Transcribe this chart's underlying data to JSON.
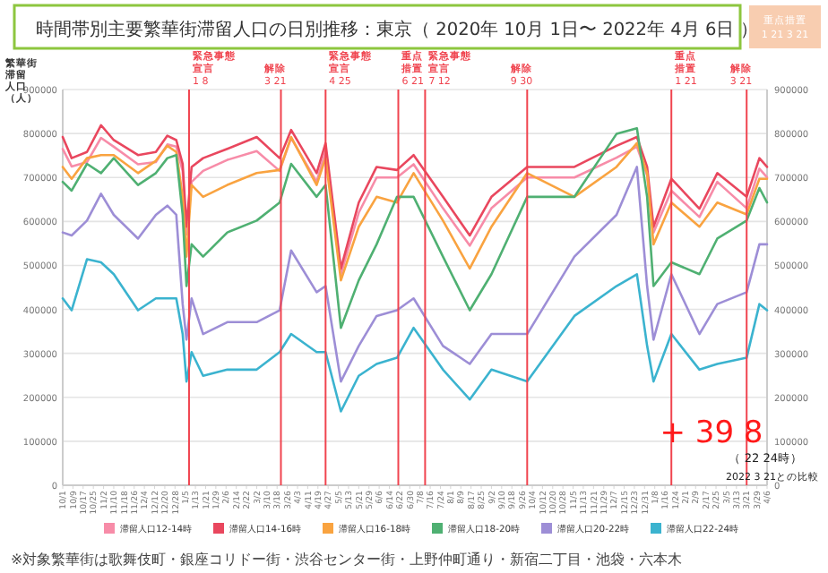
{
  "chart_data": {
    "type": "line",
    "title": "時間帯別主要繁華街滞留人口の日別推移：東京（ 2020年 10月 1日〜 2022年 4月 6日 ）",
    "ylabel": "繁華街滞留人口（人）",
    "x": [
      "2020-10-01",
      "2020-10-08",
      "2020-10-20",
      "2020-10-31",
      "2020-11-10",
      "2020-11-29",
      "2020-12-13",
      "2020-12-22",
      "2020-12-29",
      "2021-01-03",
      "2021-01-06",
      "2021-01-10",
      "2021-01-19",
      "2021-02-07",
      "2021-03-02",
      "2021-03-20",
      "2021-03-29",
      "2021-04-18",
      "2021-04-25",
      "2021-05-07",
      "2021-05-21",
      "2021-06-04",
      "2021-06-20",
      "2021-07-03",
      "2021-07-26",
      "2021-08-16",
      "2021-09-02",
      "2021-09-30",
      "2021-11-06",
      "2021-12-09",
      "2021-12-25",
      "2022-01-02",
      "2022-01-07",
      "2022-01-21",
      "2022-02-12",
      "2022-02-26",
      "2022-03-21",
      "2022-03-31",
      "2022-04-06"
    ],
    "xlim": [
      "2020-10-01",
      "2022-04-06"
    ],
    "ylim": [
      0,
      900000
    ],
    "yticks": [
      0,
      100000,
      200000,
      300000,
      400000,
      500000,
      600000,
      700000,
      800000,
      900000
    ],
    "y2lim": [
      0,
      900000
    ],
    "y2ticks": [
      0,
      100000,
      200000,
      300000,
      400000,
      500000,
      600000,
      700000,
      800000,
      900000
    ],
    "grid": "y",
    "legend": "bottom",
    "series": [
      {
        "name": "滞留人口12-14時",
        "color": "#f78ca8",
        "values": [
          765000,
          725000,
          735000,
          790000,
          770000,
          730000,
          735000,
          775000,
          770000,
          715000,
          570000,
          690000,
          715000,
          740000,
          760000,
          715000,
          790000,
          690000,
          760000,
          480000,
          620000,
          700000,
          700000,
          730000,
          630000,
          545000,
          630000,
          700000,
          700000,
          745000,
          770000,
          705000,
          575000,
          670000,
          610000,
          690000,
          630000,
          720000,
          700000
        ]
      },
      {
        "name": "滞留人口14-16時",
        "color": "#e9475e",
        "values": [
          792000,
          744000,
          758000,
          819000,
          785000,
          751000,
          758000,
          795000,
          785000,
          731000,
          588000,
          724000,
          744000,
          765000,
          792000,
          744000,
          808000,
          710000,
          778000,
          493000,
          643000,
          724000,
          717000,
          751000,
          656000,
          568000,
          656000,
          724000,
          724000,
          772000,
          792000,
          724000,
          588000,
          697000,
          629000,
          710000,
          656000,
          744000,
          724000
        ]
      },
      {
        "name": "滞留人口16-18時",
        "color": "#f9a340",
        "values": [
          724000,
          697000,
          744000,
          751000,
          751000,
          710000,
          738000,
          772000,
          758000,
          656000,
          520000,
          683000,
          656000,
          683000,
          710000,
          717000,
          792000,
          683000,
          744000,
          466000,
          588000,
          656000,
          643000,
          710000,
          602000,
          493000,
          588000,
          710000,
          656000,
          724000,
          778000,
          710000,
          548000,
          643000,
          588000,
          643000,
          616000,
          697000,
          697000
        ]
      },
      {
        "name": "滞留人口18-20時",
        "color": "#4fb072",
        "values": [
          690000,
          670000,
          731000,
          710000,
          744000,
          683000,
          710000,
          744000,
          751000,
          615000,
          453000,
          548000,
          520000,
          575000,
          602000,
          643000,
          731000,
          656000,
          683000,
          358000,
          466000,
          548000,
          656000,
          656000,
          520000,
          398000,
          480000,
          656000,
          656000,
          799000,
          812000,
          656000,
          453000,
          507000,
          480000,
          561000,
          602000,
          676000,
          643000
        ]
      },
      {
        "name": "滞留人口20-22時",
        "color": "#9d8ed6",
        "values": [
          575000,
          568000,
          602000,
          663000,
          615000,
          561000,
          615000,
          636000,
          615000,
          412000,
          331000,
          425000,
          344000,
          371000,
          371000,
          398000,
          534000,
          439000,
          453000,
          236000,
          317000,
          385000,
          398000,
          425000,
          317000,
          276000,
          344000,
          344000,
          520000,
          615000,
          724000,
          453000,
          331000,
          480000,
          344000,
          412000,
          439000,
          548000,
          548000
        ]
      },
      {
        "name": "滞留人口22-24時",
        "color": "#3bb3cf",
        "values": [
          425000,
          398000,
          514000,
          507000,
          480000,
          398000,
          425000,
          425000,
          425000,
          344000,
          236000,
          303000,
          249000,
          263000,
          263000,
          303000,
          344000,
          303000,
          303000,
          168000,
          249000,
          276000,
          290000,
          358000,
          263000,
          195000,
          263000,
          236000,
          385000,
          453000,
          480000,
          317000,
          236000,
          344000,
          263000,
          276000,
          290000,
          412000,
          398000
        ]
      }
    ],
    "ref_lines": [
      {
        "axis": "x",
        "value": "2021-01-08",
        "label": "緊急事態宣言\n1 8",
        "color": "#f0444f"
      },
      {
        "axis": "x",
        "value": "2021-03-21",
        "label": "解除\n3 21",
        "color": "#f0444f"
      },
      {
        "axis": "x",
        "value": "2021-04-25",
        "label": "緊急事態宣言\n4 25",
        "color": "#f0444f"
      },
      {
        "axis": "x",
        "value": "2021-06-21",
        "label": "重点措置\n6 21",
        "color": "#f0444f"
      },
      {
        "axis": "x",
        "value": "2021-07-12",
        "label": "緊急事態宣言\n7 12",
        "color": "#f0444f"
      },
      {
        "axis": "x",
        "value": "2021-09-30",
        "label": "解除\n9 30",
        "color": "#f0444f"
      },
      {
        "axis": "x",
        "value": "2022-01-21",
        "label": "重点措置\n1 21",
        "color": "#f0444f"
      },
      {
        "axis": "x",
        "value": "2022-03-21",
        "label": "解除\n3 21",
        "color": "#f0444f"
      }
    ],
    "annotations": [
      "重点措置\n1 21 3 21",
      "+ 39 8",
      "（ 22 24時）",
      "2022 3 21との比較",
      "※対象繁華街は歌舞伎町・銀座コリドー街・渋谷センター街・上野仲町通り・新宿二丁目・池袋・六本木"
    ],
    "xticks": [
      {
        "value": "2020-10-01",
        "label": "10/1"
      },
      {
        "value": "2020-10-09",
        "label": "10/9"
      },
      {
        "value": "2020-10-17",
        "label": "10/17"
      },
      {
        "value": "2020-10-25",
        "label": "10/25"
      },
      {
        "value": "2020-11-02",
        "label": "11/2"
      },
      {
        "value": "2020-11-10",
        "label": "11/10"
      },
      {
        "value": "2020-11-18",
        "label": "11/18"
      },
      {
        "value": "2020-11-26",
        "label": "11/26"
      },
      {
        "value": "2020-12-04",
        "label": "12/4"
      },
      {
        "value": "2020-12-12",
        "label": "12/12"
      },
      {
        "value": "2020-12-20",
        "label": "12/20"
      },
      {
        "value": "2020-12-28",
        "label": "12/28"
      },
      {
        "value": "2021-01-05",
        "label": "1/5"
      },
      {
        "value": "2021-01-13",
        "label": "1/13"
      },
      {
        "value": "2021-01-21",
        "label": "1/21"
      },
      {
        "value": "2021-01-29",
        "label": "1/29"
      },
      {
        "value": "2021-02-06",
        "label": "2/6"
      },
      {
        "value": "2021-02-14",
        "label": "2/14"
      },
      {
        "value": "2021-02-22",
        "label": "2/22"
      },
      {
        "value": "2021-03-02",
        "label": "3/2"
      },
      {
        "value": "2021-03-10",
        "label": "3/10"
      },
      {
        "value": "2021-03-18",
        "label": "3/18"
      },
      {
        "value": "2021-03-26",
        "label": "3/26"
      },
      {
        "value": "2021-04-03",
        "label": "4/3"
      },
      {
        "value": "2021-04-11",
        "label": "4/11"
      },
      {
        "value": "2021-04-19",
        "label": "4/19"
      },
      {
        "value": "2021-04-27",
        "label": "4/27"
      },
      {
        "value": "2021-05-05",
        "label": "5/5"
      },
      {
        "value": "2021-05-13",
        "label": "5/13"
      },
      {
        "value": "2021-05-21",
        "label": "5/21"
      },
      {
        "value": "2021-05-29",
        "label": "5/29"
      },
      {
        "value": "2021-06-06",
        "label": "6/6"
      },
      {
        "value": "2021-06-14",
        "label": "6/14"
      },
      {
        "value": "2021-06-22",
        "label": "6/22"
      },
      {
        "value": "2021-06-30",
        "label": "6/30"
      },
      {
        "value": "2021-07-08",
        "label": "7/8"
      },
      {
        "value": "2021-07-16",
        "label": "7/16"
      },
      {
        "value": "2021-07-24",
        "label": "7/24"
      },
      {
        "value": "2021-08-01",
        "label": "8/1"
      },
      {
        "value": "2021-08-09",
        "label": "8/9"
      },
      {
        "value": "2021-08-17",
        "label": "8/17"
      },
      {
        "value": "2021-08-25",
        "label": "8/25"
      },
      {
        "value": "2021-09-02",
        "label": "9/2"
      },
      {
        "value": "2021-09-10",
        "label": "9/10"
      },
      {
        "value": "2021-09-18",
        "label": "9/18"
      },
      {
        "value": "2021-09-26",
        "label": "9/26"
      },
      {
        "value": "2021-10-04",
        "label": "10/4"
      },
      {
        "value": "2021-10-12",
        "label": "10/12"
      },
      {
        "value": "2021-10-20",
        "label": "10/20"
      },
      {
        "value": "2021-10-28",
        "label": "10/28"
      },
      {
        "value": "2021-11-05",
        "label": "11/5"
      },
      {
        "value": "2021-11-13",
        "label": "11/13"
      },
      {
        "value": "2021-11-21",
        "label": "11/21"
      },
      {
        "value": "2021-11-29",
        "label": "11/29"
      },
      {
        "value": "2021-12-07",
        "label": "12/7"
      },
      {
        "value": "2021-12-15",
        "label": "12/15"
      },
      {
        "value": "2021-12-23",
        "label": "12/23"
      },
      {
        "value": "2021-12-31",
        "label": "12/31"
      },
      {
        "value": "2022-01-08",
        "label": "1/8"
      },
      {
        "value": "2022-01-16",
        "label": "1/16"
      },
      {
        "value": "2022-01-24",
        "label": "1/24"
      },
      {
        "value": "2022-02-01",
        "label": "2/1"
      },
      {
        "value": "2022-02-09",
        "label": "2/9"
      },
      {
        "value": "2022-02-17",
        "label": "2/17"
      },
      {
        "value": "2022-02-25",
        "label": "2/25"
      },
      {
        "value": "2022-03-05",
        "label": "3/5"
      },
      {
        "value": "2022-03-13",
        "label": "3/13"
      },
      {
        "value": "2022-03-21",
        "label": "3/21"
      },
      {
        "value": "2022-03-29",
        "label": "3/29"
      },
      {
        "value": "2022-04-06",
        "label": "4/6"
      }
    ]
  }
}
